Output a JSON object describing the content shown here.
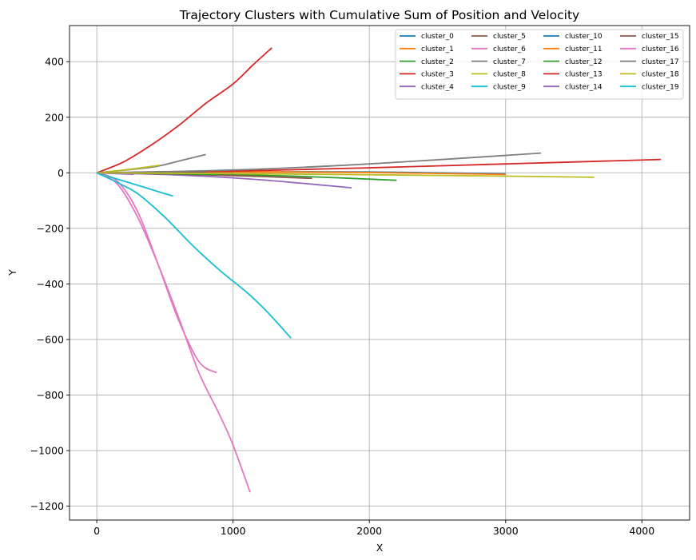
{
  "chart_data": {
    "type": "line",
    "title": "Trajectory Clusters with Cumulative Sum of Position and Velocity",
    "xlabel": "X",
    "ylabel": "Y",
    "xlim": [
      -200,
      4350
    ],
    "ylim": [
      -1250,
      530
    ],
    "xticks": [
      0,
      1000,
      2000,
      3000,
      4000
    ],
    "yticks": [
      -1200,
      -1000,
      -800,
      -600,
      -400,
      -200,
      0,
      200,
      400
    ],
    "grid": true,
    "legend": {
      "placement": "top-right",
      "columns": 4
    },
    "series": [
      {
        "name": "cluster_0",
        "color": "#1f77b4",
        "points": [
          [
            0,
            0
          ],
          [
            1000,
            3
          ],
          [
            2000,
            3
          ],
          [
            3000,
            -4
          ]
        ]
      },
      {
        "name": "cluster_1",
        "color": "#ff7f0e",
        "points": [
          [
            0,
            0
          ],
          [
            1000,
            4
          ],
          [
            2000,
            1
          ],
          [
            3000,
            -6
          ]
        ]
      },
      {
        "name": "cluster_2",
        "color": "#2ca02c",
        "points": [
          [
            0,
            0
          ],
          [
            800,
            -4
          ],
          [
            1500,
            -13
          ],
          [
            2200,
            -27
          ]
        ]
      },
      {
        "name": "cluster_3",
        "color": "#d62728",
        "points": [
          [
            0,
            0
          ],
          [
            200,
            40
          ],
          [
            400,
            100
          ],
          [
            600,
            170
          ],
          [
            800,
            250
          ],
          [
            1000,
            320
          ],
          [
            1150,
            390
          ],
          [
            1285,
            450
          ]
        ]
      },
      {
        "name": "cluster_4",
        "color": "#9467bd",
        "points": [
          [
            0,
            0
          ],
          [
            600,
            -8
          ],
          [
            1200,
            -25
          ],
          [
            1870,
            -54
          ]
        ]
      },
      {
        "name": "cluster_5",
        "color": "#8c564b",
        "points": [
          [
            0,
            0
          ],
          [
            500,
            -4
          ],
          [
            1000,
            -10
          ],
          [
            1580,
            -20
          ]
        ]
      },
      {
        "name": "cluster_6",
        "color": "#e377c2",
        "points": [
          [
            0,
            0
          ],
          [
            150,
            -30
          ],
          [
            300,
            -140
          ],
          [
            450,
            -330
          ],
          [
            600,
            -530
          ],
          [
            750,
            -680
          ],
          [
            880,
            -720
          ]
        ]
      },
      {
        "name": "cluster_7",
        "color": "#7f7f7f",
        "points": [
          [
            0,
            0
          ],
          [
            400,
            20
          ],
          [
            600,
            42
          ],
          [
            800,
            66
          ]
        ]
      },
      {
        "name": "cluster_8",
        "color": "#bcbd22",
        "points": [
          [
            0,
            0
          ],
          [
            200,
            10
          ],
          [
            460,
            27
          ]
        ]
      },
      {
        "name": "cluster_9",
        "color": "#17becf",
        "points": [
          [
            0,
            0
          ],
          [
            200,
            -30
          ],
          [
            400,
            -60
          ],
          [
            560,
            -84
          ]
        ]
      },
      {
        "name": "cluster_10",
        "color": "#1f77b4",
        "points": [
          [
            0,
            0
          ],
          [
            500,
            1
          ],
          [
            1000,
            2
          ]
        ]
      },
      {
        "name": "cluster_11",
        "color": "#ff7f0e",
        "points": [
          [
            0,
            0
          ],
          [
            700,
            3
          ],
          [
            1400,
            2
          ]
        ]
      },
      {
        "name": "cluster_12",
        "color": "#2ca02c",
        "points": [
          [
            0,
            0
          ],
          [
            400,
            -2
          ],
          [
            900,
            -6
          ]
        ]
      },
      {
        "name": "cluster_13",
        "color": "#d62728",
        "points": [
          [
            0,
            0
          ],
          [
            1000,
            6
          ],
          [
            2000,
            18
          ],
          [
            3000,
            32
          ],
          [
            4140,
            48
          ]
        ]
      },
      {
        "name": "cluster_14",
        "color": "#9467bd",
        "points": [
          [
            0,
            0
          ],
          [
            150,
            -3
          ],
          [
            270,
            -5
          ]
        ]
      },
      {
        "name": "cluster_15",
        "color": "#8c564b",
        "points": [
          [
            0,
            0
          ],
          [
            400,
            2
          ],
          [
            800,
            3
          ]
        ]
      },
      {
        "name": "cluster_16",
        "color": "#e377c2",
        "points": [
          [
            0,
            0
          ],
          [
            150,
            -40
          ],
          [
            300,
            -160
          ],
          [
            450,
            -330
          ],
          [
            600,
            -520
          ],
          [
            750,
            -720
          ],
          [
            900,
            -870
          ],
          [
            1000,
            -980
          ],
          [
            1125,
            -1150
          ]
        ]
      },
      {
        "name": "cluster_17",
        "color": "#7f7f7f",
        "points": [
          [
            0,
            0
          ],
          [
            1000,
            10
          ],
          [
            2000,
            32
          ],
          [
            3260,
            71
          ]
        ]
      },
      {
        "name": "cluster_18",
        "color": "#bcbd22",
        "points": [
          [
            0,
            0
          ],
          [
            1000,
            -3
          ],
          [
            2000,
            -7
          ],
          [
            3000,
            -12
          ],
          [
            3650,
            -16
          ]
        ]
      },
      {
        "name": "cluster_19",
        "color": "#17becf",
        "points": [
          [
            0,
            0
          ],
          [
            150,
            -35
          ],
          [
            300,
            -75
          ],
          [
            500,
            -160
          ],
          [
            700,
            -260
          ],
          [
            900,
            -350
          ],
          [
            1100,
            -430
          ],
          [
            1250,
            -500
          ],
          [
            1425,
            -595
          ]
        ]
      }
    ]
  }
}
